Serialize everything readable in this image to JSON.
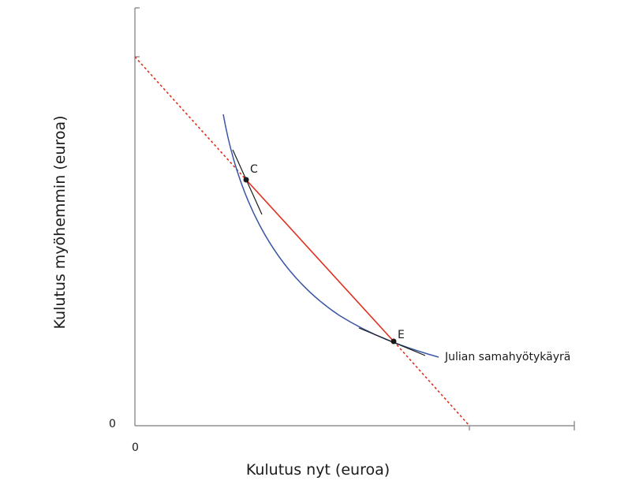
{
  "figure": {
    "x_axis_label": "Kulutus nyt (euroa)",
    "y_axis_label": "Kulutus myöhemmin (euroa)",
    "x_origin_label": "0",
    "y_origin_label": "0",
    "points": {
      "c_label": "C",
      "e_label": "E"
    },
    "indifference_curve_label": "Julian samahyötykäyrä",
    "colors": {
      "budget_line": "#e0301e",
      "indifference_curve": "#3a55a4",
      "tangent_lines": "#1a1a1a",
      "axes": "#7a7a7a",
      "points": "#1a1a1a"
    }
  }
}
